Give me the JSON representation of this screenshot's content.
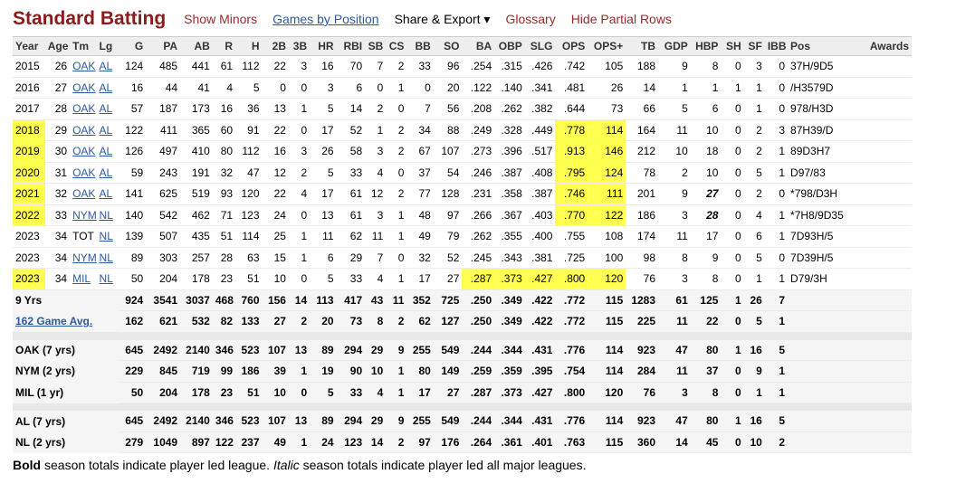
{
  "header": {
    "title": "Standard Batting",
    "links": [
      "Show Minors",
      "Games by Position",
      "Share & Export ▾",
      "Glossary",
      "Hide Partial Rows"
    ]
  },
  "columns": [
    "Year",
    "Age",
    "Tm",
    "Lg",
    "G",
    "PA",
    "AB",
    "R",
    "H",
    "2B",
    "3B",
    "HR",
    "RBI",
    "SB",
    "CS",
    "BB",
    "SO",
    "BA",
    "OBP",
    "SLG",
    "OPS",
    "OPS+",
    "TB",
    "GDP",
    "HBP",
    "SH",
    "SF",
    "IBB",
    "Pos",
    "Awards"
  ],
  "seasons": [
    [
      "2015",
      "26",
      "OAK",
      "AL",
      "124",
      "485",
      "441",
      "61",
      "112",
      "22",
      "3",
      "16",
      "70",
      "7",
      "2",
      "33",
      "96",
      ".254",
      ".315",
      ".426",
      ".742",
      "105",
      "188",
      "9",
      "8",
      "0",
      "3",
      "0",
      "37H/9D5",
      ""
    ],
    [
      "2016",
      "27",
      "OAK",
      "AL",
      "16",
      "44",
      "41",
      "4",
      "5",
      "0",
      "0",
      "3",
      "6",
      "0",
      "1",
      "0",
      "20",
      ".122",
      ".140",
      ".341",
      ".481",
      "26",
      "14",
      "1",
      "1",
      "1",
      "1",
      "0",
      "/H3579D",
      ""
    ],
    [
      "2017",
      "28",
      "OAK",
      "AL",
      "57",
      "187",
      "173",
      "16",
      "36",
      "13",
      "1",
      "5",
      "14",
      "2",
      "0",
      "7",
      "56",
      ".208",
      ".262",
      ".382",
      ".644",
      "73",
      "66",
      "5",
      "6",
      "0",
      "1",
      "0",
      "978/H3D",
      ""
    ],
    [
      "2018",
      "29",
      "OAK",
      "AL",
      "122",
      "411",
      "365",
      "60",
      "91",
      "22",
      "0",
      "17",
      "52",
      "1",
      "2",
      "34",
      "88",
      ".249",
      ".328",
      ".449",
      ".778",
      "114",
      "164",
      "11",
      "10",
      "0",
      "2",
      "3",
      "87H39/D",
      ""
    ],
    [
      "2019",
      "30",
      "OAK",
      "AL",
      "126",
      "497",
      "410",
      "80",
      "112",
      "16",
      "3",
      "26",
      "58",
      "3",
      "2",
      "67",
      "107",
      ".273",
      ".396",
      ".517",
      ".913",
      "146",
      "212",
      "10",
      "18",
      "0",
      "2",
      "1",
      "89D3H7",
      ""
    ],
    [
      "2020",
      "31",
      "OAK",
      "AL",
      "59",
      "243",
      "191",
      "32",
      "47",
      "12",
      "2",
      "5",
      "33",
      "4",
      "0",
      "37",
      "54",
      ".246",
      ".387",
      ".408",
      ".795",
      "124",
      "78",
      "2",
      "10",
      "0",
      "5",
      "1",
      "D97/83",
      ""
    ],
    [
      "2021",
      "32",
      "OAK",
      "AL",
      "141",
      "625",
      "519",
      "93",
      "120",
      "22",
      "4",
      "17",
      "61",
      "12",
      "2",
      "77",
      "128",
      ".231",
      ".358",
      ".387",
      ".746",
      "111",
      "201",
      "9",
      "27",
      "0",
      "2",
      "0",
      "*798/D3H",
      ""
    ],
    [
      "2022",
      "33",
      "NYM",
      "NL",
      "140",
      "542",
      "462",
      "71",
      "123",
      "24",
      "0",
      "13",
      "61",
      "3",
      "1",
      "48",
      "97",
      ".266",
      ".367",
      ".403",
      ".770",
      "122",
      "186",
      "3",
      "28",
      "0",
      "4",
      "1",
      "*7H8/9D35",
      ""
    ],
    [
      "2023",
      "34",
      "TOT",
      "NL",
      "139",
      "507",
      "435",
      "51",
      "114",
      "25",
      "1",
      "11",
      "62",
      "11",
      "1",
      "49",
      "79",
      ".262",
      ".355",
      ".400",
      ".755",
      "108",
      "174",
      "11",
      "17",
      "0",
      "6",
      "1",
      "7D93H/5",
      ""
    ],
    [
      "2023",
      "34",
      "NYM",
      "NL",
      "89",
      "303",
      "257",
      "28",
      "63",
      "15",
      "1",
      "6",
      "29",
      "7",
      "0",
      "32",
      "52",
      ".245",
      ".343",
      ".381",
      ".725",
      "100",
      "98",
      "8",
      "9",
      "0",
      "5",
      "0",
      "7D39H/5",
      ""
    ],
    [
      "2023",
      "34",
      "MIL",
      "NL",
      "50",
      "204",
      "178",
      "23",
      "51",
      "10",
      "0",
      "5",
      "33",
      "4",
      "1",
      "17",
      "27",
      ".287",
      ".373",
      ".427",
      ".800",
      "120",
      "76",
      "3",
      "8",
      "0",
      "1",
      "1",
      "D79/3H",
      ""
    ]
  ],
  "totals": [
    {
      "label": "9 Yrs",
      "vals": [
        "924",
        "3541",
        "3037",
        "468",
        "760",
        "156",
        "14",
        "113",
        "417",
        "43",
        "11",
        "352",
        "725",
        ".250",
        ".349",
        ".422",
        ".772",
        "115",
        "1283",
        "61",
        "125",
        "1",
        "26",
        "7"
      ]
    },
    {
      "label": "162 Game Avg.",
      "vals": [
        "162",
        "621",
        "532",
        "82",
        "133",
        "27",
        "2",
        "20",
        "73",
        "8",
        "2",
        "62",
        "127",
        ".250",
        ".349",
        ".422",
        ".772",
        "115",
        "225",
        "11",
        "22",
        "0",
        "5",
        "1"
      ]
    }
  ],
  "teams": [
    {
      "label": "OAK (7 yrs)",
      "vals": [
        "645",
        "2492",
        "2140",
        "346",
        "523",
        "107",
        "13",
        "89",
        "294",
        "29",
        "9",
        "255",
        "549",
        ".244",
        ".344",
        ".431",
        ".776",
        "114",
        "923",
        "47",
        "80",
        "1",
        "16",
        "5"
      ]
    },
    {
      "label": "NYM (2 yrs)",
      "vals": [
        "229",
        "845",
        "719",
        "99",
        "186",
        "39",
        "1",
        "19",
        "90",
        "10",
        "1",
        "80",
        "149",
        ".259",
        ".359",
        ".395",
        ".754",
        "114",
        "284",
        "11",
        "37",
        "0",
        "9",
        "1"
      ]
    },
    {
      "label": "MIL (1 yr)",
      "vals": [
        "50",
        "204",
        "178",
        "23",
        "51",
        "10",
        "0",
        "5",
        "33",
        "4",
        "1",
        "17",
        "27",
        ".287",
        ".373",
        ".427",
        ".800",
        "120",
        "76",
        "3",
        "8",
        "0",
        "1",
        "1"
      ]
    }
  ],
  "leagues": [
    {
      "label": "AL (7 yrs)",
      "vals": [
        "645",
        "2492",
        "2140",
        "346",
        "523",
        "107",
        "13",
        "89",
        "294",
        "29",
        "9",
        "255",
        "549",
        ".244",
        ".344",
        ".431",
        ".776",
        "114",
        "923",
        "47",
        "80",
        "1",
        "16",
        "5"
      ]
    },
    {
      "label": "NL (2 yrs)",
      "vals": [
        "279",
        "1049",
        "897",
        "122",
        "237",
        "49",
        "1",
        "24",
        "123",
        "14",
        "2",
        "97",
        "176",
        ".264",
        ".361",
        ".401",
        ".763",
        "115",
        "360",
        "14",
        "45",
        "0",
        "10",
        "2"
      ]
    }
  ],
  "footnote": {
    "bold": "Bold",
    "t1": " season totals indicate player led league. ",
    "italic": "Italic",
    "t2": " season totals indicate player led all major leagues."
  },
  "colors": {
    "title": "#8b1a1a",
    "link": "#2c5aa0",
    "highlight": "#ffff4f"
  }
}
